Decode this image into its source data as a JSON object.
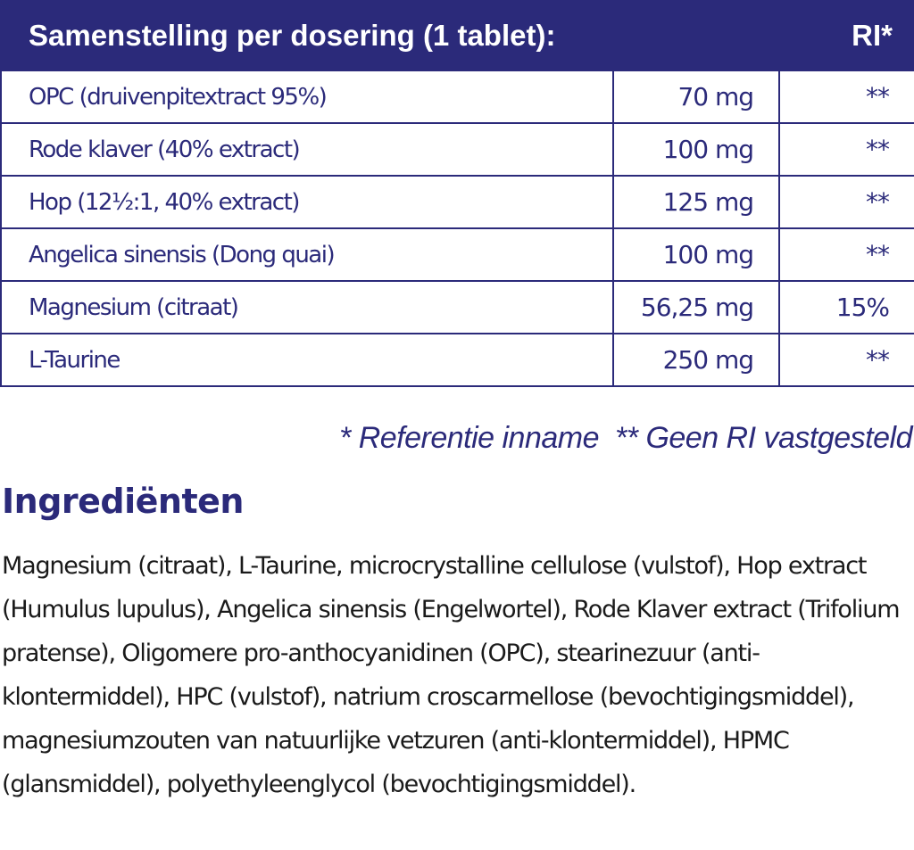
{
  "table": {
    "header_title": "Samenstelling per dosering (1 tablet):",
    "header_ri": "RI*",
    "rows": [
      {
        "name": "OPC (druivenpitextract 95%)",
        "amount": "70 mg",
        "ri": "**"
      },
      {
        "name": "Rode klaver (40% extract)",
        "amount": "100 mg",
        "ri": "**"
      },
      {
        "name": "Hop (12½:1, 40% extract)",
        "amount": "125 mg",
        "ri": "**"
      },
      {
        "name": "Angelica sinensis (Dong quai)",
        "amount": "100 mg",
        "ri": "**"
      },
      {
        "name": "Magnesium (citraat)",
        "amount": "56,25 mg",
        "ri": "15%"
      },
      {
        "name": "L-Taurine",
        "amount": "250 mg",
        "ri": "**"
      }
    ]
  },
  "footnote": {
    "ri_note": "* Referentie inname",
    "no_ri_note": "** Geen RI vastgesteld"
  },
  "ingredients": {
    "title": "Ingrediënten",
    "text": "Magnesium (citraat), L-Taurine, microcrystalline cellulose (vulstof), Hop extract (Humulus lupulus), Angelica sinensis (Engelwortel), Rode Klaver extract (Trifolium pratense), Oligomere pro-anthocyanidinen (OPC), stearinezuur (anti-klontermiddel), HPC (vulstof), natrium croscarmellose (bevochtigingsmiddel), magnesiumzouten van natuurlijke vetzuren (anti-klontermiddel), HPMC (glansmiddel), polyethyleenglycol (bevochtigingsmiddel)."
  },
  "colors": {
    "brand_navy": "#2b2a7a",
    "body_text": "#1a1a1a",
    "background": "#ffffff"
  }
}
